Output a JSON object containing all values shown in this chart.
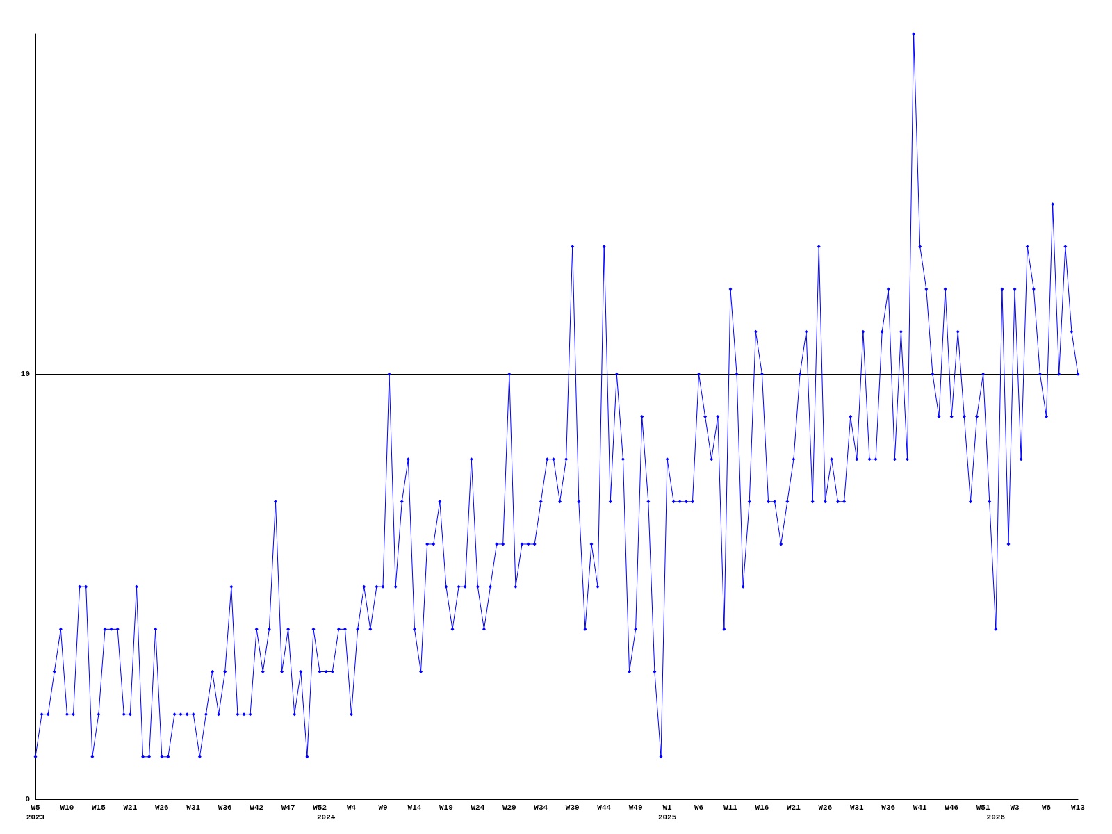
{
  "chart_data": {
    "type": "line",
    "categories": [
      "W5\n2023",
      null,
      null,
      null,
      null,
      "W10",
      null,
      null,
      null,
      null,
      "W15",
      null,
      null,
      null,
      null,
      "W21",
      null,
      null,
      null,
      null,
      "W26",
      null,
      null,
      null,
      null,
      "W31",
      null,
      null,
      null,
      null,
      "W36",
      null,
      null,
      null,
      null,
      "W42",
      null,
      null,
      null,
      null,
      "W47",
      null,
      null,
      null,
      null,
      "W52",
      "\n2024",
      null,
      null,
      null,
      "W4",
      null,
      null,
      null,
      null,
      "W9",
      null,
      null,
      null,
      null,
      "W14",
      null,
      null,
      null,
      null,
      "W19",
      null,
      null,
      null,
      null,
      "W24",
      null,
      null,
      null,
      null,
      "W29",
      null,
      null,
      null,
      null,
      "W34",
      null,
      null,
      null,
      null,
      "W39",
      null,
      null,
      null,
      null,
      "W44",
      null,
      null,
      null,
      null,
      "W49",
      null,
      null,
      null,
      null,
      "W1\n2025",
      null,
      null,
      null,
      null,
      "W6",
      null,
      null,
      null,
      null,
      "W11",
      null,
      null,
      null,
      null,
      "W16",
      null,
      null,
      null,
      null,
      "W21",
      null,
      null,
      null,
      null,
      "W26",
      null,
      null,
      null,
      null,
      "W31",
      null,
      null,
      null,
      null,
      "W36",
      null,
      null,
      null,
      null,
      "W41",
      null,
      null,
      null,
      null,
      "W46",
      null,
      null,
      null,
      null,
      "W51",
      null,
      "\n2026",
      null,
      null,
      "W3",
      null,
      null,
      null,
      null,
      "W8",
      null,
      null,
      null,
      null,
      "W13"
    ],
    "series": [
      {
        "color": "#0000ff",
        "values": [
          1,
          2,
          2,
          3,
          4,
          2,
          2,
          5,
          5,
          1,
          2,
          4,
          4,
          4,
          2,
          2,
          5,
          1,
          1,
          4,
          1,
          1,
          2,
          2,
          2,
          2,
          1,
          2,
          3,
          2,
          3,
          5,
          2,
          2,
          2,
          4,
          3,
          4,
          7,
          3,
          4,
          2,
          3,
          1,
          4,
          3,
          3,
          3,
          4,
          4,
          2,
          4,
          5,
          4,
          5,
          5,
          10,
          5,
          7,
          8,
          4,
          3,
          6,
          6,
          7,
          5,
          4,
          5,
          5,
          8,
          5,
          4,
          5,
          6,
          6,
          10,
          5,
          6,
          6,
          6,
          7,
          8,
          8,
          7,
          8,
          13,
          7,
          4,
          6,
          5,
          13,
          7,
          10,
          8,
          3,
          4,
          9,
          7,
          3,
          1,
          8,
          7,
          7,
          7,
          7,
          10,
          9,
          8,
          9,
          4,
          12,
          10,
          5,
          7,
          11,
          10,
          7,
          7,
          6,
          7,
          8,
          10,
          11,
          7,
          13,
          7,
          8,
          7,
          7,
          9,
          8,
          11,
          8,
          8,
          11,
          12,
          8,
          11,
          8,
          18,
          13,
          12,
          10,
          9,
          12,
          9,
          11,
          9,
          7,
          9,
          10,
          7,
          4,
          12,
          6,
          12,
          8,
          13,
          12,
          10,
          9,
          14,
          10,
          13,
          11,
          10
        ]
      }
    ],
    "ylim": [
      0,
      18
    ],
    "yticks": [
      0,
      10
    ],
    "grid": "y",
    "marker": "diamond",
    "line_style": "solid"
  }
}
